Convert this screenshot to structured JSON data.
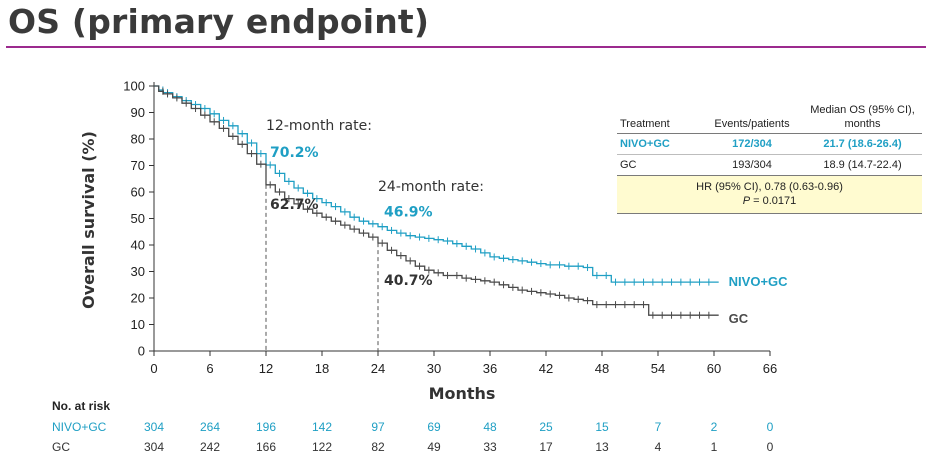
{
  "slide_title": "OS (primary endpoint)",
  "colors": {
    "nivo": "#1f9fc4",
    "gc": "#4a4a4a",
    "rule": "#9c2a8e",
    "hr_box": "#fffbd0"
  },
  "chart_data": {
    "type": "line",
    "xlabel": "Months",
    "ylabel": "Overall survival (%)",
    "xlim": [
      0,
      66
    ],
    "ylim": [
      0,
      100
    ],
    "x_ticks": [
      0,
      6,
      12,
      18,
      24,
      30,
      36,
      42,
      48,
      54,
      60,
      66
    ],
    "y_ticks": [
      0,
      10,
      20,
      30,
      40,
      50,
      60,
      70,
      80,
      90,
      100
    ],
    "series": [
      {
        "name": "NIVO+GC",
        "key": "nivo",
        "x": [
          0,
          0.5,
          1,
          2,
          3,
          4,
          5,
          6,
          7,
          8,
          9,
          10,
          11,
          12,
          13,
          14,
          15,
          16,
          17,
          18,
          19,
          20,
          21,
          22,
          23,
          24,
          25,
          26,
          27,
          28,
          29,
          30,
          31,
          32,
          33,
          34,
          35,
          36,
          37,
          38,
          39,
          40,
          41,
          42,
          43,
          44,
          45,
          46,
          47,
          48,
          49,
          50,
          51,
          52,
          53,
          54,
          55,
          56,
          57,
          58,
          59,
          60.5
        ],
        "y": [
          100,
          98.5,
          97.5,
          96,
          94.5,
          93,
          91.5,
          89.5,
          87,
          85,
          82,
          78.5,
          74.5,
          70.2,
          67,
          64,
          61.5,
          59.5,
          57.5,
          56,
          54.5,
          52.5,
          50.5,
          49,
          48,
          46.9,
          45.5,
          44.5,
          43.5,
          43,
          42.5,
          42,
          41.5,
          40.5,
          39.5,
          38.5,
          37,
          35.5,
          35,
          34.5,
          34,
          33.5,
          33,
          32.5,
          32.5,
          32,
          32,
          31.5,
          28.5,
          28.5,
          26,
          26,
          26,
          26,
          26,
          26,
          26,
          26,
          26,
          26,
          26,
          26
        ]
      },
      {
        "name": "GC",
        "key": "gc",
        "x": [
          0,
          0.5,
          1,
          2,
          3,
          4,
          5,
          6,
          7,
          8,
          9,
          10,
          11,
          12,
          13,
          14,
          15,
          16,
          17,
          18,
          19,
          20,
          21,
          22,
          23,
          24,
          25,
          26,
          27,
          28,
          29,
          30,
          31,
          32,
          33,
          34,
          35,
          36,
          37,
          38,
          39,
          40,
          41,
          42,
          43,
          44,
          45,
          46,
          47,
          48,
          49,
          50,
          51,
          52,
          53,
          54,
          55,
          56,
          57,
          58,
          59,
          60.5
        ],
        "y": [
          100,
          98,
          97,
          95.5,
          93.5,
          91.5,
          89,
          86.5,
          84,
          81,
          78,
          74.5,
          70.5,
          62.7,
          60,
          57.5,
          55.5,
          53.5,
          52,
          50.5,
          49,
          47.5,
          46,
          44.5,
          43,
          40.7,
          38,
          36,
          34,
          32,
          30.5,
          29.5,
          28.5,
          28.5,
          27.5,
          27,
          26.5,
          26,
          25,
          24,
          23,
          22.5,
          22,
          21.5,
          21,
          20,
          19.5,
          19,
          17.5,
          17.5,
          17.5,
          17.5,
          17.5,
          17.5,
          13.5,
          13.5,
          13.5,
          13.5,
          13.5,
          13.5,
          13.5,
          13.5
        ]
      }
    ],
    "series_labels": {
      "nivo": "NIVO+GC",
      "gc": "GC"
    },
    "annotations": [
      {
        "label": "12-month rate:",
        "x_month": 12
      },
      {
        "label": "24-month rate:",
        "x_month": 24
      }
    ],
    "rates": [
      {
        "month": 12,
        "nivo": "70.2%",
        "gc": "62.7%"
      },
      {
        "month": 24,
        "nivo": "46.9%",
        "gc": "40.7%"
      }
    ],
    "risk_table": {
      "title": "No. at risk",
      "rows": [
        {
          "label": "NIVO+GC",
          "key": "nivo",
          "values": [
            304,
            264,
            196,
            142,
            97,
            69,
            48,
            25,
            15,
            7,
            2,
            0
          ]
        },
        {
          "label": "GC",
          "key": "gc",
          "values": [
            304,
            242,
            166,
            122,
            82,
            49,
            33,
            17,
            13,
            4,
            1,
            0
          ]
        }
      ]
    }
  },
  "stats_table": {
    "headers": [
      "Treatment",
      "Events/patients",
      "Median OS (95% CI),",
      "months"
    ],
    "rows": [
      {
        "treatment": "NIVO+GC",
        "events": "172/304",
        "median": "21.7 (18.6-26.4)"
      },
      {
        "treatment": "GC",
        "events": "193/304",
        "median": "18.9 (14.7-22.4)"
      }
    ],
    "hr_line": "HR (95% CI), 0.78 (0.63-0.96)",
    "p_label": "P",
    "p_value": " = 0.0171"
  }
}
